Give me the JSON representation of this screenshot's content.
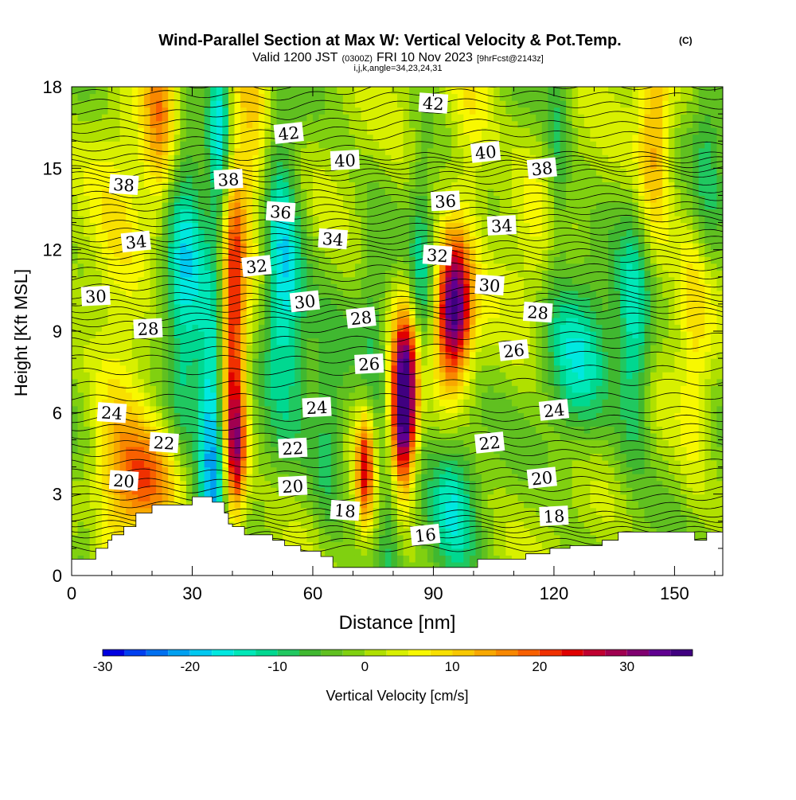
{
  "chart_data": {
    "type": "heatmap",
    "title": "Wind-Parallel Section at Max W: Vertical Velocity & Pot.Temp.",
    "title_mark": "(C)",
    "subtitle_parts": [
      "Valid 1200 JST",
      "(0300Z)",
      "FRI 10 Nov 2023",
      "[9hrFcst@2143z]"
    ],
    "subtitle2": "i,j,k,angle=34,23,24,31",
    "xlabel": "Distance [nm]",
    "ylabel": "Height [Kft MSL]",
    "xlim": [
      0,
      162
    ],
    "ylim": [
      0,
      18
    ],
    "xticks": [
      0,
      30,
      60,
      90,
      120,
      150
    ],
    "yticks": [
      0,
      3,
      6,
      9,
      12,
      15,
      18
    ],
    "colorbar": {
      "label": "Vertical Velocity [cm/s]",
      "range": [
        -30,
        37.5
      ],
      "ticks": [
        -30,
        -20,
        -10,
        0,
        10,
        20,
        30
      ],
      "step": 2.5,
      "colors": [
        "#0000e0",
        "#0040f0",
        "#0070f0",
        "#00a0f0",
        "#00c8f0",
        "#00e8e0",
        "#00e8b8",
        "#00d890",
        "#20c860",
        "#40b830",
        "#60c020",
        "#80d010",
        "#b0e000",
        "#d8f000",
        "#f8f800",
        "#f8e000",
        "#f8c800",
        "#f8a800",
        "#f88800",
        "#f86000",
        "#f03000",
        "#e00000",
        "#c00030",
        "#a00050",
        "#800070",
        "#600090",
        "#400080"
      ]
    },
    "wmax_cms": 37,
    "wmin_cms": -22,
    "w_features": [
      {
        "x": 3,
        "y": 0.5,
        "sx": 3,
        "sy": 1.5,
        "w": -8
      },
      {
        "x": 12,
        "y": 8,
        "sx": 5,
        "sy": 6,
        "w": 8
      },
      {
        "x": 20,
        "y": 3.5,
        "sx": 8,
        "sy": 1.5,
        "w": 14
      },
      {
        "x": 22,
        "y": 17,
        "sx": 3,
        "sy": 3,
        "w": 14
      },
      {
        "x": 28,
        "y": 10,
        "sx": 3.5,
        "sy": 5,
        "w": -15
      },
      {
        "x": 35,
        "y": 5,
        "sx": 2.5,
        "sy": 4,
        "w": -22
      },
      {
        "x": 37,
        "y": 16.5,
        "sx": 2,
        "sy": 3,
        "w": -16
      },
      {
        "x": 40,
        "y": 9,
        "sx": 2.2,
        "sy": 5,
        "w": 24
      },
      {
        "x": 41,
        "y": 4.5,
        "sx": 1.8,
        "sy": 1.5,
        "w": 16
      },
      {
        "x": 45,
        "y": 16,
        "sx": 3,
        "sy": 3,
        "w": 12
      },
      {
        "x": 53,
        "y": 10,
        "sx": 4,
        "sy": 3,
        "w": -14
      },
      {
        "x": 52,
        "y": 13,
        "sx": 3,
        "sy": 3,
        "w": -8
      },
      {
        "x": 64,
        "y": 5,
        "sx": 3,
        "sy": 3,
        "w": -8
      },
      {
        "x": 73,
        "y": 4,
        "sx": 1.5,
        "sy": 1.5,
        "w": 22
      },
      {
        "x": 79,
        "y": 2.5,
        "sx": 2,
        "sy": 2.5,
        "w": -9
      },
      {
        "x": 83,
        "y": 7,
        "sx": 2.5,
        "sy": 2,
        "w": 36
      },
      {
        "x": 82,
        "y": 5,
        "sx": 2,
        "sy": 1.5,
        "w": 15
      },
      {
        "x": 75,
        "y": 9,
        "sx": 2.5,
        "sy": 3,
        "w": -6
      },
      {
        "x": 87,
        "y": 10,
        "sx": 2,
        "sy": 4,
        "w": -10
      },
      {
        "x": 95,
        "y": 9.8,
        "sx": 3,
        "sy": 1.8,
        "w": 37
      },
      {
        "x": 95,
        "y": 2.5,
        "sx": 4,
        "sy": 2,
        "w": -12
      },
      {
        "x": 99,
        "y": 16.5,
        "sx": 4,
        "sy": 3,
        "w": 8
      },
      {
        "x": 115,
        "y": 11,
        "sx": 5,
        "sy": 3,
        "w": 4
      },
      {
        "x": 121,
        "y": 15,
        "sx": 2,
        "sy": 3,
        "w": -8
      },
      {
        "x": 126,
        "y": 8,
        "sx": 6,
        "sy": 2.5,
        "w": -12
      },
      {
        "x": 140,
        "y": 8.5,
        "sx": 3,
        "sy": 3,
        "w": -14
      },
      {
        "x": 145,
        "y": 16,
        "sx": 3,
        "sy": 3,
        "w": 14
      },
      {
        "x": 155,
        "y": 9,
        "sx": 3,
        "sy": 4,
        "w": 8
      },
      {
        "x": 158,
        "y": 15,
        "sx": 3,
        "sy": 3,
        "w": -8
      }
    ],
    "theta_levels_c": [
      16,
      18,
      20,
      22,
      24,
      26,
      28,
      30,
      32,
      34,
      36,
      38,
      40,
      42
    ],
    "theta_labels": [
      {
        "t": 42,
        "x": 54,
        "y": 16.3
      },
      {
        "t": 42,
        "x": 90,
        "y": 17.4
      },
      {
        "t": 40,
        "x": 68,
        "y": 15.3
      },
      {
        "t": 40,
        "x": 103,
        "y": 15.6
      },
      {
        "t": 38,
        "x": 13,
        "y": 14.4
      },
      {
        "t": 38,
        "x": 39,
        "y": 14.6
      },
      {
        "t": 38,
        "x": 117,
        "y": 15.0
      },
      {
        "t": 36,
        "x": 52,
        "y": 13.4
      },
      {
        "t": 36,
        "x": 93,
        "y": 13.8
      },
      {
        "t": 34,
        "x": 16,
        "y": 12.3
      },
      {
        "t": 34,
        "x": 65,
        "y": 12.4
      },
      {
        "t": 34,
        "x": 107,
        "y": 12.9
      },
      {
        "t": 32,
        "x": 46,
        "y": 11.4
      },
      {
        "t": 32,
        "x": 91,
        "y": 11.8
      },
      {
        "t": 30,
        "x": 6,
        "y": 10.3
      },
      {
        "t": 30,
        "x": 58,
        "y": 10.1
      },
      {
        "t": 30,
        "x": 104,
        "y": 10.7
      },
      {
        "t": 28,
        "x": 19,
        "y": 9.1
      },
      {
        "t": 28,
        "x": 72,
        "y": 9.5
      },
      {
        "t": 28,
        "x": 116,
        "y": 9.7
      },
      {
        "t": 26,
        "x": 74,
        "y": 7.8
      },
      {
        "t": 26,
        "x": 110,
        "y": 8.3
      },
      {
        "t": 24,
        "x": 10,
        "y": 6.0
      },
      {
        "t": 24,
        "x": 61,
        "y": 6.2
      },
      {
        "t": 24,
        "x": 120,
        "y": 6.1
      },
      {
        "t": 22,
        "x": 23,
        "y": 4.9
      },
      {
        "t": 22,
        "x": 55,
        "y": 4.7
      },
      {
        "t": 22,
        "x": 104,
        "y": 4.9
      },
      {
        "t": 20,
        "x": 13,
        "y": 3.5
      },
      {
        "t": 20,
        "x": 55,
        "y": 3.3
      },
      {
        "t": 20,
        "x": 117,
        "y": 3.6
      },
      {
        "t": 18,
        "x": 68,
        "y": 2.4
      },
      {
        "t": 18,
        "x": 120,
        "y": 2.2
      },
      {
        "t": 16,
        "x": 88,
        "y": 1.5
      }
    ],
    "terrain_kft": [
      [
        0,
        0.6
      ],
      [
        6,
        0.6
      ],
      [
        6,
        1.0
      ],
      [
        9,
        1.0
      ],
      [
        9,
        1.3
      ],
      [
        10,
        1.3
      ],
      [
        10,
        1.5
      ],
      [
        13,
        1.5
      ],
      [
        13,
        1.8
      ],
      [
        16,
        1.8
      ],
      [
        16,
        2.3
      ],
      [
        20,
        2.3
      ],
      [
        20,
        2.6
      ],
      [
        30,
        2.6
      ],
      [
        30,
        2.9
      ],
      [
        35,
        2.9
      ],
      [
        35,
        2.7
      ],
      [
        38,
        2.7
      ],
      [
        38,
        2.3
      ],
      [
        39,
        2.3
      ],
      [
        39,
        1.9
      ],
      [
        40,
        1.9
      ],
      [
        40,
        1.8
      ],
      [
        43,
        1.8
      ],
      [
        43,
        1.5
      ],
      [
        50,
        1.5
      ],
      [
        50,
        1.3
      ],
      [
        53,
        1.3
      ],
      [
        53,
        1.1
      ],
      [
        57,
        1.1
      ],
      [
        57,
        0.9
      ],
      [
        62,
        0.9
      ],
      [
        62,
        0.7
      ],
      [
        65,
        0.7
      ],
      [
        65,
        0.3
      ],
      [
        101,
        0.3
      ],
      [
        101,
        0.6
      ],
      [
        113,
        0.6
      ],
      [
        113,
        0.8
      ],
      [
        119,
        0.8
      ],
      [
        119,
        1.0
      ],
      [
        124,
        1.0
      ],
      [
        124,
        1.1
      ],
      [
        132,
        1.1
      ],
      [
        132,
        1.3
      ],
      [
        136,
        1.3
      ],
      [
        136,
        1.6
      ],
      [
        155,
        1.6
      ],
      [
        155,
        1.3
      ],
      [
        158,
        1.3
      ],
      [
        158,
        1.6
      ],
      [
        162,
        1.6
      ]
    ]
  }
}
